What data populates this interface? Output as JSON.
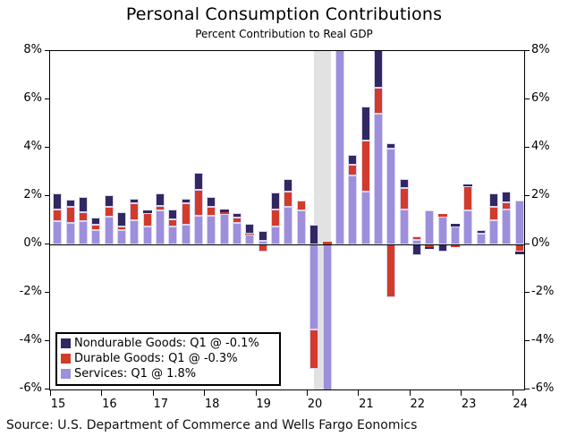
{
  "title": "Personal Consumption Contributions",
  "subtitle": "Percent Contribution to Real GDP",
  "source": "Source: U.S. Department of Commerce and Wells Fargo Eonomics",
  "legend": [
    {
      "label": "Nondurable Goods: Q1 @ -0.1%",
      "color": "#322861"
    },
    {
      "label": "Durable Goods: Q1 @ -0.3%",
      "color": "#d23b2a"
    },
    {
      "label": "Services: Q1 @ 1.8%",
      "color": "#9d8fdc"
    }
  ],
  "chart_data": {
    "type": "bar",
    "stacked": true,
    "title": "Personal Consumption Contributions",
    "subtitle": "Percent Contribution to Real GDP",
    "categories": [
      "2015Q1",
      "2015Q2",
      "2015Q3",
      "2015Q4",
      "2016Q1",
      "2016Q2",
      "2016Q3",
      "2016Q4",
      "2017Q1",
      "2017Q2",
      "2017Q3",
      "2017Q4",
      "2018Q1",
      "2018Q2",
      "2018Q3",
      "2018Q4",
      "2019Q1",
      "2019Q2",
      "2019Q3",
      "2019Q4",
      "2020Q1",
      "2020Q2",
      "2020Q3",
      "2020Q4",
      "2021Q1",
      "2021Q2",
      "2021Q3",
      "2021Q4",
      "2022Q1",
      "2022Q2",
      "2022Q3",
      "2022Q4",
      "2023Q1",
      "2023Q2",
      "2023Q3",
      "2023Q4",
      "2024Q1"
    ],
    "series": [
      {
        "name": "Services",
        "color": "#9d8fdc",
        "values": [
          0.95,
          0.9,
          0.95,
          0.6,
          1.15,
          0.6,
          1.0,
          0.75,
          1.4,
          0.75,
          0.8,
          1.2,
          1.2,
          1.25,
          0.9,
          0.4,
          0.15,
          0.75,
          1.55,
          1.4,
          -3.5,
          -6.6,
          9.0,
          2.85,
          2.2,
          5.4,
          3.95,
          1.45,
          0.2,
          1.4,
          1.15,
          0.75,
          1.4,
          0.45,
          1.0,
          1.45,
          1.8
        ]
      },
      {
        "name": "Durable Goods",
        "color": "#d23b2a",
        "values": [
          0.5,
          0.65,
          0.4,
          0.2,
          0.4,
          0.15,
          0.7,
          0.55,
          0.2,
          0.3,
          0.9,
          1.05,
          0.35,
          0.1,
          0.2,
          0.05,
          -0.3,
          0.7,
          0.65,
          0.4,
          -1.65,
          0.1,
          0.0,
          0.45,
          2.1,
          1.1,
          -2.2,
          0.9,
          0.15,
          -0.1,
          0.1,
          -0.1,
          1.0,
          0.0,
          0.55,
          0.3,
          -0.3
        ]
      },
      {
        "name": "Nondurable Goods",
        "color": "#322861",
        "values": [
          0.65,
          0.3,
          0.6,
          0.3,
          0.5,
          0.6,
          0.2,
          0.1,
          0.5,
          0.4,
          0.2,
          0.7,
          0.4,
          0.1,
          0.2,
          0.4,
          0.4,
          0.7,
          0.5,
          0.0,
          0.8,
          0.0,
          0.0,
          0.4,
          1.4,
          1.7,
          0.25,
          0.35,
          -0.45,
          -0.1,
          -0.3,
          0.1,
          0.1,
          0.15,
          0.55,
          0.45,
          -0.1
        ]
      }
    ],
    "ylim": [
      -6,
      8
    ],
    "yticks": [
      "8%",
      "6%",
      "4%",
      "2%",
      "0%",
      "-2%",
      "-4%",
      "-6%"
    ],
    "ytick_values": [
      8,
      6,
      4,
      2,
      0,
      -2,
      -4,
      -6
    ],
    "xticks": [
      "15",
      "16",
      "17",
      "18",
      "19",
      "20",
      "21",
      "22",
      "23",
      "24"
    ],
    "grid": false,
    "zero_line": true,
    "legend_position": "bottom-left",
    "recession_band": {
      "start_quarter": "2020Q1",
      "end_quarter": "2020Q2",
      "color": "#e2e2e2"
    },
    "clipping": "bars exceeding y-axis range are clipped at 8% and -6%"
  }
}
